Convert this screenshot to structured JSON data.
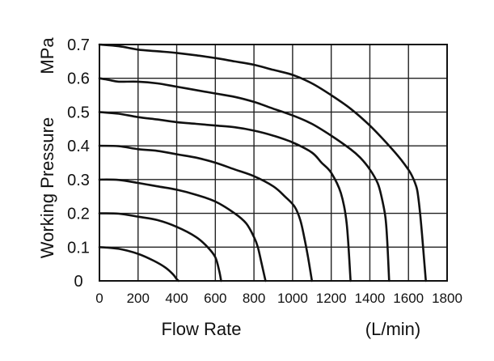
{
  "chart_data": {
    "type": "line",
    "xlabel": "Flow Rate",
    "xunit": "(L/min)",
    "ylabel": "Working Pressure",
    "yunit": "MPa",
    "xlim": [
      0,
      1800
    ],
    "ylim": [
      0,
      0.7
    ],
    "x_ticks": [
      "0",
      "200",
      "400",
      "600",
      "800",
      "1000",
      "1200",
      "1400",
      "1600",
      "1800"
    ],
    "y_ticks": [
      "0",
      "0.1",
      "0.2",
      "0.3",
      "0.4",
      "0.5",
      "0.6",
      "0.7"
    ],
    "grid": true,
    "series": [
      {
        "x": [
          0,
          100,
          200,
          280,
          340,
          380,
          400,
          410
        ],
        "y": [
          0.1,
          0.095,
          0.08,
          0.06,
          0.04,
          0.02,
          0.005,
          0
        ]
      },
      {
        "x": [
          0,
          100,
          200,
          300,
          400,
          500,
          560,
          600,
          620,
          630
        ],
        "y": [
          0.2,
          0.199,
          0.19,
          0.18,
          0.16,
          0.13,
          0.1,
          0.07,
          0.03,
          0
        ]
      },
      {
        "x": [
          0,
          100,
          200,
          300,
          400,
          500,
          600,
          700,
          760,
          800,
          820,
          840,
          860
        ],
        "y": [
          0.3,
          0.299,
          0.29,
          0.28,
          0.27,
          0.255,
          0.235,
          0.2,
          0.17,
          0.13,
          0.1,
          0.05,
          0
        ]
      },
      {
        "x": [
          0,
          100,
          200,
          300,
          400,
          500,
          600,
          700,
          800,
          900,
          960,
          1010,
          1040,
          1060,
          1080,
          1100
        ],
        "y": [
          0.4,
          0.399,
          0.39,
          0.385,
          0.375,
          0.365,
          0.35,
          0.33,
          0.31,
          0.28,
          0.25,
          0.22,
          0.18,
          0.13,
          0.07,
          0
        ]
      },
      {
        "x": [
          0,
          100,
          200,
          300,
          400,
          500,
          600,
          700,
          800,
          900,
          1000,
          1100,
          1150,
          1200,
          1250,
          1280,
          1300
        ],
        "y": [
          0.5,
          0.495,
          0.485,
          0.478,
          0.47,
          0.465,
          0.46,
          0.455,
          0.445,
          0.43,
          0.41,
          0.38,
          0.35,
          0.32,
          0.26,
          0.17,
          0
        ]
      },
      {
        "x": [
          0,
          50,
          100,
          200,
          300,
          400,
          500,
          600,
          700,
          800,
          900,
          1000,
          1100,
          1200,
          1300,
          1350,
          1400,
          1440,
          1460,
          1480,
          1490,
          1500
        ],
        "y": [
          0.6,
          0.595,
          0.59,
          0.59,
          0.585,
          0.575,
          0.565,
          0.555,
          0.545,
          0.53,
          0.51,
          0.49,
          0.465,
          0.43,
          0.39,
          0.365,
          0.33,
          0.29,
          0.25,
          0.19,
          0.12,
          0
        ]
      },
      {
        "x": [
          0,
          100,
          200,
          300,
          400,
          500,
          600,
          700,
          800,
          900,
          1000,
          1100,
          1200,
          1300,
          1400,
          1500,
          1560,
          1610,
          1640,
          1650,
          1660,
          1670,
          1680,
          1690
        ],
        "y": [
          0.7,
          0.695,
          0.685,
          0.68,
          0.675,
          0.668,
          0.66,
          0.65,
          0.64,
          0.625,
          0.61,
          0.585,
          0.55,
          0.51,
          0.46,
          0.4,
          0.36,
          0.32,
          0.28,
          0.25,
          0.2,
          0.14,
          0.07,
          0
        ]
      }
    ]
  }
}
